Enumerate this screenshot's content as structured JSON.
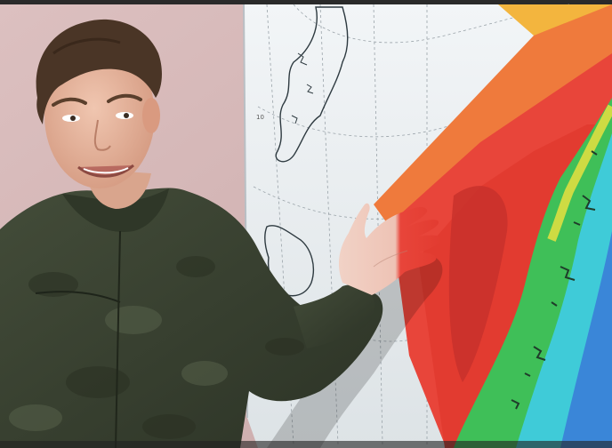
{
  "photo": {
    "map_labels": [
      "10"
    ],
    "colors": {
      "wall": "#d9bcbc",
      "projection_screen": "#eef2f4",
      "heat_red": "#e8453a",
      "heat_orange": "#ef7a3c",
      "heat_yellow": "#f3b53e",
      "land_green": "#3fbf58",
      "sea_cyan": "#3fcbd8",
      "sea_blue": "#3a6fd8",
      "shirt_camo": "#3b4532"
    }
  }
}
